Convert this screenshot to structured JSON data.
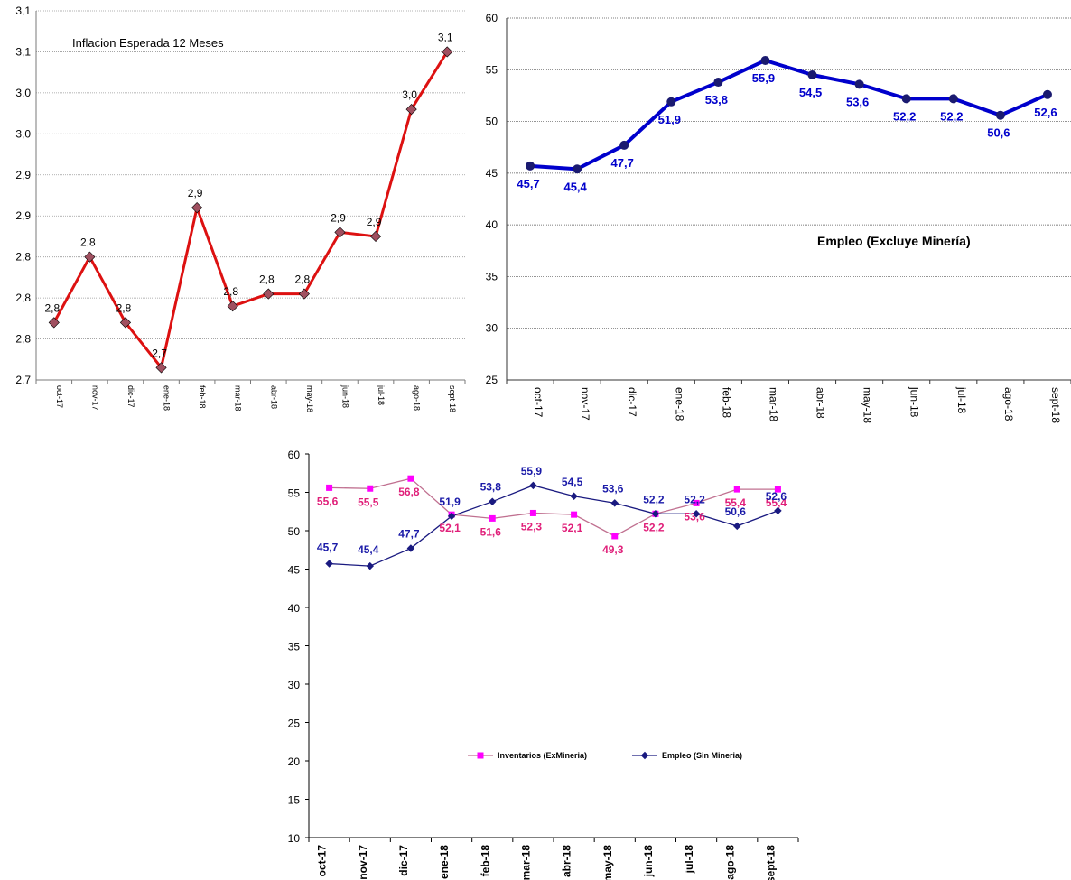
{
  "chart_data": [
    {
      "type": "line",
      "title": "Inflacion Esperada 12 Meses",
      "categories": [
        "oct-17",
        "nov-17",
        "dic-17",
        "ene-18",
        "feb-18",
        "mar-18",
        "abr-18",
        "may-18",
        "jun-18",
        "jul-18",
        "ago-18",
        "sept-18"
      ],
      "y_ticks": [
        "2,7",
        "2,8",
        "2,8",
        "2,8",
        "2,9",
        "2,9",
        "3,0",
        "3,0",
        "3,1",
        "3,1"
      ],
      "ylim": [
        2.7,
        3.15
      ],
      "series": [
        {
          "values": [
            2.77,
            2.85,
            2.77,
            2.715,
            2.91,
            2.79,
            2.805,
            2.805,
            2.88,
            2.875,
            3.03,
            3.1
          ],
          "labels": [
            "2,8",
            "2,8",
            "2,8",
            "2,7",
            "2,9",
            "2,8",
            "2,8",
            "2,8",
            "2,9",
            "2,9",
            "3,0",
            "3,1"
          ],
          "color": "#dd1111",
          "marker_color": "#a05060"
        }
      ],
      "grid": "horizontal"
    },
    {
      "type": "line",
      "title": "Empleo (Excluye Minería)",
      "categories": [
        "oct-17",
        "nov-17",
        "dic-17",
        "ene-18",
        "feb-18",
        "mar-18",
        "abr-18",
        "may-18",
        "jun-18",
        "jul-18",
        "ago-18",
        "sept-18"
      ],
      "y_ticks": [
        "25",
        "30",
        "35",
        "40",
        "45",
        "50",
        "55",
        "60"
      ],
      "ylim": [
        25,
        60
      ],
      "series": [
        {
          "values": [
            45.7,
            45.4,
            47.7,
            51.9,
            53.8,
            55.9,
            54.5,
            53.6,
            52.2,
            52.2,
            50.6,
            52.6
          ],
          "labels": [
            "45,7",
            "45,4",
            "47,7",
            "51,9",
            "53,8",
            "55,9",
            "54,5",
            "53,6",
            "52,2",
            "52,2",
            "50,6",
            "52,6"
          ],
          "color": "#0000cc",
          "marker_color": "#1a1a70"
        }
      ],
      "grid": "horizontal"
    },
    {
      "type": "line",
      "categories": [
        "oct-17",
        "nov-17",
        "dic-17",
        "ene-18",
        "feb-18",
        "mar-18",
        "abr-18",
        "may-18",
        "jun-18",
        "jul-18",
        "ago-18",
        "sept-18"
      ],
      "y_ticks": [
        "10",
        "15",
        "20",
        "25",
        "30",
        "35",
        "40",
        "45",
        "50",
        "55",
        "60"
      ],
      "ylim": [
        10,
        60
      ],
      "legend": "center",
      "series": [
        {
          "name": "Inventarios (ExMineria)",
          "values": [
            55.6,
            55.5,
            56.8,
            52.1,
            51.6,
            52.3,
            52.1,
            49.3,
            52.2,
            53.6,
            55.4,
            55.4
          ],
          "labels": [
            "55,6",
            "55,5",
            "56,8",
            "52,1",
            "51,6",
            "52,3",
            "52,1",
            "49,3",
            "52,2",
            "53,6",
            "55,4",
            "55,4"
          ],
          "color": "#c07090",
          "marker_color": "#ff00ff"
        },
        {
          "name": "Empleo (Sin Mineria)",
          "values": [
            45.7,
            45.4,
            47.7,
            51.9,
            53.8,
            55.9,
            54.5,
            53.6,
            52.2,
            52.2,
            50.6,
            52.6
          ],
          "labels": [
            "45,7",
            "45,4",
            "47,7",
            "51,9",
            "53,8",
            "55,9",
            "54,5",
            "53,6",
            "52,2",
            "52,2",
            "50,6",
            "52,6"
          ],
          "color": "#1a1a80",
          "marker_color": "#1a1a80"
        }
      ]
    }
  ]
}
